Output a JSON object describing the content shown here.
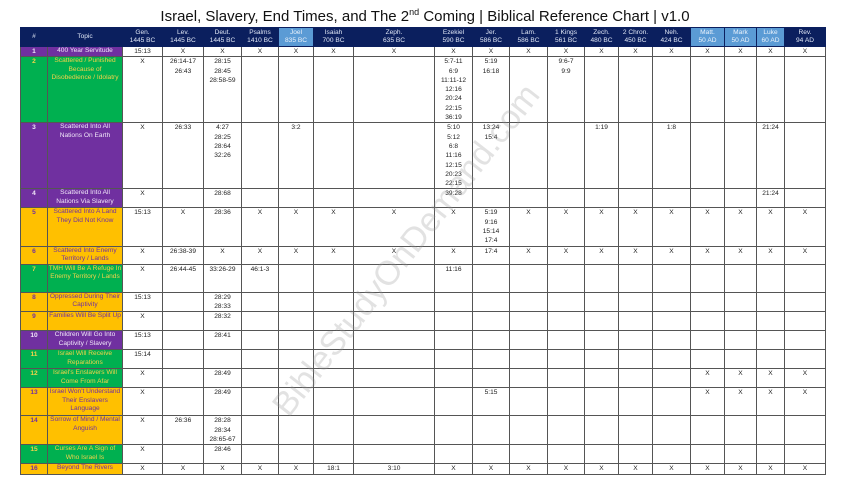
{
  "title": {
    "main": "Israel, Slavery, End Times, and The 2",
    "sup": "nd",
    "rest": " Coming | Biblical Reference Chart | v1.0"
  },
  "watermark": "BibleStudyOnDemand.com",
  "colors": {
    "header": "#0b1f5e",
    "header_highlight": "#5b9bd5",
    "purple": "#7030a0",
    "green": "#00b050",
    "gold": "#ffc000"
  },
  "columns": [
    {
      "label": "#",
      "date": ""
    },
    {
      "label": "Topic",
      "date": ""
    },
    {
      "label": "Gen.",
      "date": "1445 BC"
    },
    {
      "label": "Lev.",
      "date": "1445 BC"
    },
    {
      "label": "Deut.",
      "date": "1445 BC"
    },
    {
      "label": "Psalms",
      "date": "1410 BC"
    },
    {
      "label": "Joel",
      "date": "835 BC",
      "highlight": true
    },
    {
      "label": "Isaiah",
      "date": "700 BC"
    },
    {
      "label": "Zeph.",
      "date": "635 BC"
    },
    {
      "label": "Ezekiel",
      "date": "590 BC"
    },
    {
      "label": "Jer.",
      "date": "586 BC"
    },
    {
      "label": "Lam.",
      "date": "586 BC"
    },
    {
      "label": "1 Kings",
      "date": "561 BC"
    },
    {
      "label": "Zech.",
      "date": "480 BC"
    },
    {
      "label": "2 Chron.",
      "date": "450 BC"
    },
    {
      "label": "Neh.",
      "date": "424 BC"
    },
    {
      "label": "Matt.",
      "date": "50 AD",
      "highlight": true
    },
    {
      "label": "Mark",
      "date": "50 AD",
      "highlight": true
    },
    {
      "label": "Luke",
      "date": "60 AD",
      "highlight": true
    },
    {
      "label": "Rev.",
      "date": "94 AD"
    }
  ],
  "rows": [
    {
      "num": "1",
      "topic": "400 Year Servitude",
      "color": "purple",
      "cells": [
        "15:13",
        "X",
        "X",
        "X",
        "X",
        "X",
        "X",
        "X",
        "X",
        "X",
        "X",
        "X",
        "X",
        "X",
        "X",
        "X",
        "X",
        "X"
      ]
    },
    {
      "num": "2",
      "topic": "Scattered / Punished Because of Disobedience / Idolatry",
      "color": "green",
      "cells": [
        "X",
        "26:14-17\n26:43",
        "28:15\n28:45\n28:58-59",
        "",
        "",
        "",
        "",
        "5:7-11\n6:9\n11:11-12\n12:16\n20:24\n22:15\n36:19",
        "5:19\n16:18",
        "",
        "9:6-7\n9:9",
        "",
        "",
        "",
        "",
        "",
        "",
        ""
      ]
    },
    {
      "num": "3",
      "topic": "Scattered Into All Nations On Earth",
      "color": "purple",
      "cells": [
        "X",
        "26:33",
        "4:27\n28:25\n28:64\n32:26",
        "",
        "3:2",
        "",
        "",
        "5:10\n5:12\n6:8\n11:16\n12:15\n20:23\n22:15",
        "13:24\n15:4",
        "",
        "",
        "1:19",
        "",
        "1:8",
        "",
        "",
        "21:24",
        ""
      ]
    },
    {
      "num": "4",
      "topic": "Scattered Into All Nations Via Slavery",
      "color": "purple",
      "cells": [
        "X",
        "",
        "28:68",
        "",
        "",
        "",
        "",
        "39:28",
        "",
        "",
        "",
        "",
        "",
        "",
        "",
        "",
        "21:24",
        ""
      ]
    },
    {
      "num": "5",
      "topic": "Scattered Into A Land They Did Not Know",
      "color": "gold",
      "cells": [
        "15:13",
        "X",
        "28:36",
        "X",
        "X",
        "X",
        "X",
        "X",
        "5:19\n9:16\n15:14\n17:4",
        "X",
        "X",
        "X",
        "X",
        "X",
        "X",
        "X",
        "X",
        "X"
      ]
    },
    {
      "num": "6",
      "topic": "Scattered Into Enemy Territory / Lands",
      "color": "gold",
      "cells": [
        "X",
        "26:38-39",
        "X",
        "X",
        "X",
        "X",
        "X",
        "X",
        "17:4",
        "X",
        "X",
        "X",
        "X",
        "X",
        "X",
        "X",
        "X",
        "X"
      ]
    },
    {
      "num": "7",
      "topic": "TMH Will Be A Refuge In Enemy Territory / Lands",
      "color": "green",
      "cells": [
        "X",
        "26:44-45",
        "33:26-29",
        "46:1-3",
        "",
        "",
        "",
        "11:16",
        "",
        "",
        "",
        "",
        "",
        "",
        "",
        "",
        "",
        ""
      ]
    },
    {
      "num": "8",
      "topic": "Oppressed During Their Captivity",
      "color": "gold",
      "cells": [
        "15:13",
        "",
        "28:29\n28:33",
        "",
        "",
        "",
        "",
        "",
        "",
        "",
        "",
        "",
        "",
        "",
        "",
        "",
        "",
        ""
      ]
    },
    {
      "num": "9",
      "topic": "Families Will Be Split Up",
      "color": "gold",
      "cells": [
        "X",
        "",
        "28:32",
        "",
        "",
        "",
        "",
        "",
        "",
        "",
        "",
        "",
        "",
        "",
        "",
        "",
        "",
        ""
      ]
    },
    {
      "num": "10",
      "topic": "Children Will Go Into Captivity / Slavery",
      "color": "purple",
      "cells": [
        "15:13",
        "",
        "28:41",
        "",
        "",
        "",
        "",
        "",
        "",
        "",
        "",
        "",
        "",
        "",
        "",
        "",
        "",
        ""
      ]
    },
    {
      "num": "11",
      "topic": "Israel Will Receive Reparations",
      "color": "green",
      "cells": [
        "15:14",
        "",
        "",
        "",
        "",
        "",
        "",
        "",
        "",
        "",
        "",
        "",
        "",
        "",
        "",
        "",
        "",
        ""
      ]
    },
    {
      "num": "12",
      "topic": "Israel's Enslavers Will Come From Afar",
      "color": "green",
      "cells": [
        "X",
        "",
        "28:49",
        "",
        "",
        "",
        "",
        "",
        "",
        "",
        "",
        "",
        "",
        "",
        "X",
        "X",
        "X",
        "X"
      ]
    },
    {
      "num": "13",
      "topic": "Israel Won't Understand Their Enslavers Language",
      "color": "gold",
      "cells": [
        "X",
        "",
        "28:49",
        "",
        "",
        "",
        "",
        "",
        "5:15",
        "",
        "",
        "",
        "",
        "",
        "X",
        "X",
        "X",
        "X"
      ]
    },
    {
      "num": "14",
      "topic": "Sorrow of Mind / Mental Anguish",
      "color": "gold",
      "cells": [
        "X",
        "26:36",
        "28:28\n28:34\n28:65-67",
        "",
        "",
        "",
        "",
        "",
        "",
        "",
        "",
        "",
        "",
        "",
        "",
        "",
        "",
        ""
      ]
    },
    {
      "num": "15",
      "topic": "Curses Are A Sign of Who Israel Is",
      "color": "green",
      "cells": [
        "X",
        "",
        "28:46",
        "",
        "",
        "",
        "",
        "",
        "",
        "",
        "",
        "",
        "",
        "",
        "",
        "",
        "",
        ""
      ]
    },
    {
      "num": "16",
      "topic": "Beyond The Rivers",
      "color": "gold",
      "cells": [
        "X",
        "X",
        "X",
        "X",
        "X",
        "18:1",
        "3:10",
        "X",
        "X",
        "X",
        "X",
        "X",
        "X",
        "X",
        "X",
        "X",
        "X",
        "X"
      ]
    }
  ]
}
